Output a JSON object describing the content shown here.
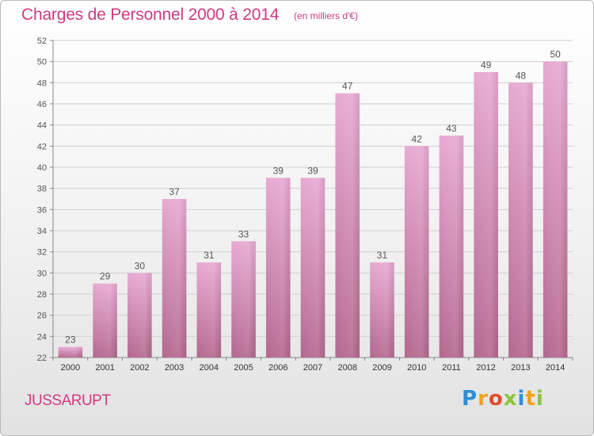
{
  "header": {
    "title": "Charges de Personnel 2000 à 2014",
    "subtitle": "(en milliers d'€)"
  },
  "commune": "JUSSARUPT",
  "logo": {
    "text": "Proxiti",
    "letters": [
      {
        "char": "P",
        "color": "#2b8fd6"
      },
      {
        "char": "r",
        "color": "#f0a21a"
      },
      {
        "char": "o",
        "color": "#e24a2c"
      },
      {
        "char": "x",
        "color": "#8bc43f"
      },
      {
        "char": "i",
        "color": "#2b8fd6"
      },
      {
        "char": "t",
        "color": "#f0a21a"
      },
      {
        "char": "i",
        "color": "#8bc43f"
      }
    ]
  },
  "chart_data": {
    "type": "bar",
    "categories": [
      "2000",
      "2001",
      "2002",
      "2003",
      "2004",
      "2005",
      "2006",
      "2007",
      "2008",
      "2009",
      "2010",
      "2011",
      "2012",
      "2013",
      "2014"
    ],
    "values": [
      23,
      29,
      30,
      37,
      31,
      33,
      39,
      39,
      47,
      31,
      42,
      43,
      49,
      48,
      50
    ],
    "ylim": [
      22,
      52
    ],
    "yticks": [
      22,
      24,
      26,
      28,
      30,
      32,
      34,
      36,
      38,
      40,
      42,
      44,
      46,
      48,
      50,
      52
    ],
    "grid": true,
    "bar_color_top": "#e8a9d2",
    "bar_color_bottom": "#b4688f",
    "label_color": "#555555"
  }
}
